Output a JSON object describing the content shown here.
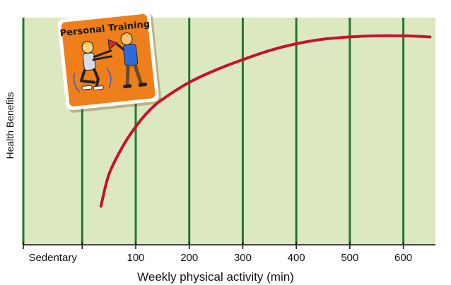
{
  "chart_data": {
    "type": "line",
    "title": "",
    "xlabel": "Weekly physical activity (min)",
    "ylabel": "Health Benefits",
    "xlim": [
      -110,
      660
    ],
    "ylim": [
      0,
      100
    ],
    "category_tick": "Sedentary",
    "x_ticks": [
      100,
      200,
      300,
      400,
      500,
      600
    ],
    "grid": "vertical",
    "series": [
      {
        "name": "",
        "x": [
          35,
          50,
          75,
          100,
          125,
          150,
          200,
          250,
          300,
          350,
          400,
          450,
          500,
          550,
          600,
          650
        ],
        "y": [
          17,
          31,
          43,
          52,
          59,
          64,
          71.5,
          77,
          81.5,
          85.5,
          88.5,
          90.5,
          91.5,
          92,
          92,
          91.5
        ]
      }
    ],
    "colors": {
      "background": "#dce8c0",
      "grid": "#1e7a2e",
      "curve": "#c8102e",
      "badge": "#ef7f1a"
    }
  },
  "illustration": {
    "title": "Personal Training"
  }
}
